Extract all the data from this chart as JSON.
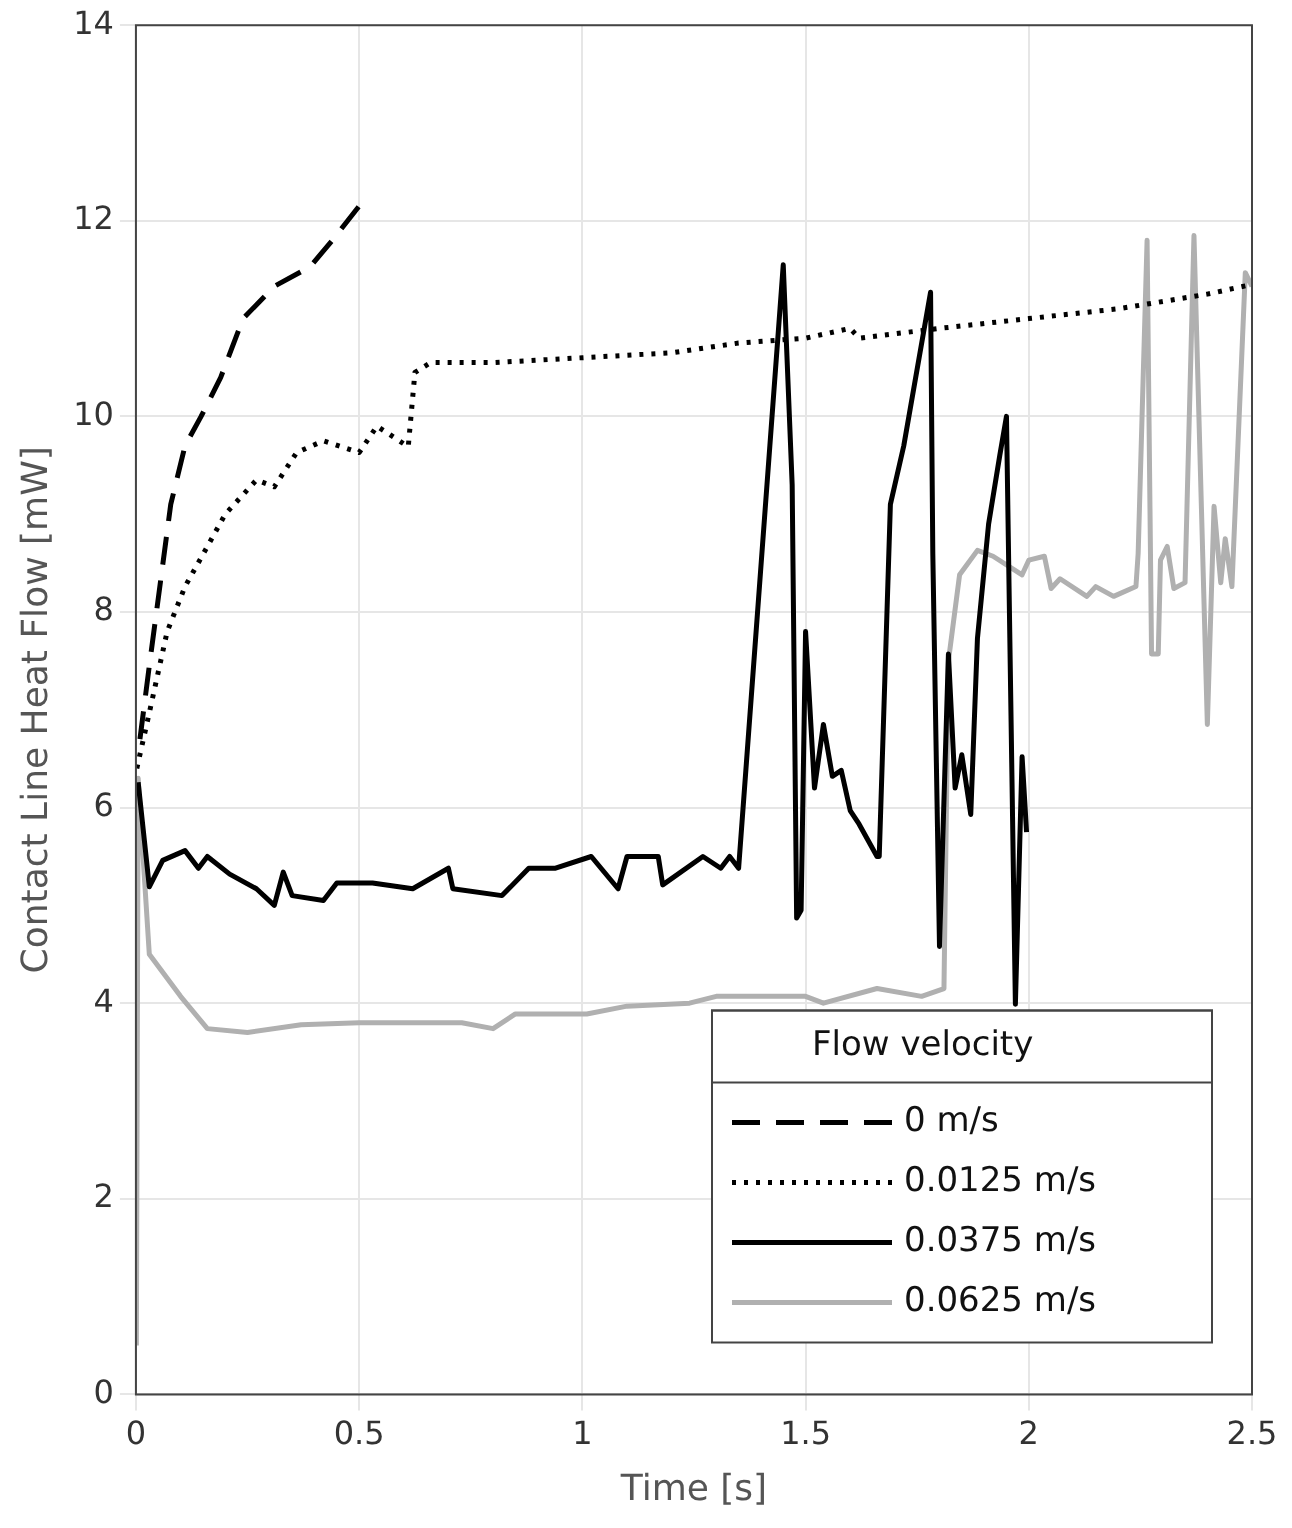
{
  "chart_data": {
    "type": "line",
    "xlabel": "Time [s]",
    "ylabel": "Contact Line Heat Flow [mW]",
    "legend_title": "Flow velocity",
    "legend": "bottom right",
    "grid": true,
    "marker": "none",
    "xlim": [
      0,
      2.5
    ],
    "xticks": [
      0,
      0.5,
      1,
      1.5,
      2,
      2.5
    ],
    "ylim": [
      0,
      14
    ],
    "yticks": [
      0,
      2,
      4,
      6,
      8,
      10,
      12,
      14
    ],
    "series": [
      {
        "name": "0 m/s",
        "color": "#000000",
        "line_style": "dashed",
        "x": [
          0.009,
          0.03,
          0.078,
          0.11,
          0.146,
          0.19,
          0.24,
          0.31,
          0.39,
          0.44,
          0.5,
          0.52
        ],
        "values": [
          6.7,
          7.45,
          9.1,
          9.7,
          10.0,
          10.4,
          11.0,
          11.33,
          11.53,
          11.8,
          12.15,
          12.15
        ]
      },
      {
        "name": "0.0125 m/s",
        "color": "#000000",
        "line_style": "dotted",
        "x": [
          0.002,
          0.03,
          0.07,
          0.11,
          0.16,
          0.2,
          0.27,
          0.31,
          0.36,
          0.42,
          0.5,
          0.54,
          0.61,
          0.625,
          0.66,
          0.8,
          1.0,
          1.2,
          1.35,
          1.5,
          1.6,
          1.62,
          1.8,
          2.0,
          2.2,
          2.4,
          2.5
        ],
        "values": [
          6.4,
          6.97,
          7.8,
          8.26,
          8.67,
          9.0,
          9.35,
          9.28,
          9.63,
          9.75,
          9.63,
          9.9,
          9.69,
          10.45,
          10.55,
          10.55,
          10.6,
          10.65,
          10.75,
          10.8,
          10.9,
          10.8,
          10.9,
          11.0,
          11.1,
          11.25,
          11.35
        ]
      },
      {
        "name": "0.0375 m/s",
        "color": "#000000",
        "line_style": "solid",
        "x": [
          0.005,
          0.03,
          0.06,
          0.11,
          0.14,
          0.16,
          0.21,
          0.27,
          0.31,
          0.33,
          0.35,
          0.42,
          0.45,
          0.53,
          0.62,
          0.7,
          0.71,
          0.82,
          0.88,
          0.94,
          1.02,
          1.08,
          1.1,
          1.17,
          1.18,
          1.27,
          1.31,
          1.33,
          1.35,
          1.45,
          1.47,
          1.48,
          1.49,
          1.5,
          1.52,
          1.54,
          1.56,
          1.58,
          1.6,
          1.62,
          1.66,
          1.665,
          1.69,
          1.72,
          1.78,
          1.785,
          1.8,
          1.82,
          1.835,
          1.85,
          1.87,
          1.885,
          1.91,
          1.935,
          1.95,
          1.97,
          1.985,
          1.995
        ],
        "values": [
          6.26,
          5.19,
          5.46,
          5.56,
          5.38,
          5.5,
          5.32,
          5.17,
          5.0,
          5.34,
          5.1,
          5.05,
          5.23,
          5.23,
          5.17,
          5.38,
          5.17,
          5.1,
          5.38,
          5.38,
          5.5,
          5.17,
          5.5,
          5.5,
          5.21,
          5.5,
          5.38,
          5.5,
          5.38,
          11.55,
          9.3,
          4.87,
          4.95,
          7.8,
          6.2,
          6.85,
          6.32,
          6.38,
          5.97,
          5.83,
          5.5,
          5.5,
          9.1,
          9.7,
          11.27,
          8.6,
          4.58,
          7.57,
          6.2,
          6.54,
          5.93,
          7.73,
          8.9,
          9.6,
          10.0,
          3.99,
          6.52,
          5.75
        ]
      },
      {
        "name": "0.0625 m/s",
        "color": "#b0b0b0",
        "line_style": "solid",
        "x": [
          0.001,
          0.005,
          0.01,
          0.03,
          0.1,
          0.16,
          0.25,
          0.37,
          0.5,
          0.62,
          0.73,
          0.8,
          0.85,
          1.01,
          1.1,
          1.24,
          1.3,
          1.5,
          1.54,
          1.66,
          1.76,
          1.81,
          1.82,
          1.845,
          1.885,
          1.92,
          1.985,
          2.0,
          2.035,
          2.05,
          2.07,
          2.13,
          2.15,
          2.19,
          2.24,
          2.245,
          2.265,
          2.275,
          2.29,
          2.295,
          2.31,
          2.325,
          2.35,
          2.37,
          2.4,
          2.415,
          2.43,
          2.44,
          2.455,
          2.485,
          2.5
        ],
        "values": [
          0.5,
          6.3,
          5.93,
          4.5,
          4.07,
          3.74,
          3.7,
          3.78,
          3.8,
          3.8,
          3.8,
          3.74,
          3.89,
          3.89,
          3.97,
          4.0,
          4.07,
          4.07,
          4.0,
          4.15,
          4.07,
          4.15,
          7.5,
          8.38,
          8.63,
          8.57,
          8.38,
          8.53,
          8.57,
          8.24,
          8.34,
          8.16,
          8.26,
          8.16,
          8.26,
          8.6,
          11.8,
          7.57,
          7.57,
          8.53,
          8.67,
          8.24,
          8.3,
          11.85,
          6.85,
          9.08,
          8.3,
          8.75,
          8.26,
          11.47,
          11.33
        ]
      }
    ]
  }
}
